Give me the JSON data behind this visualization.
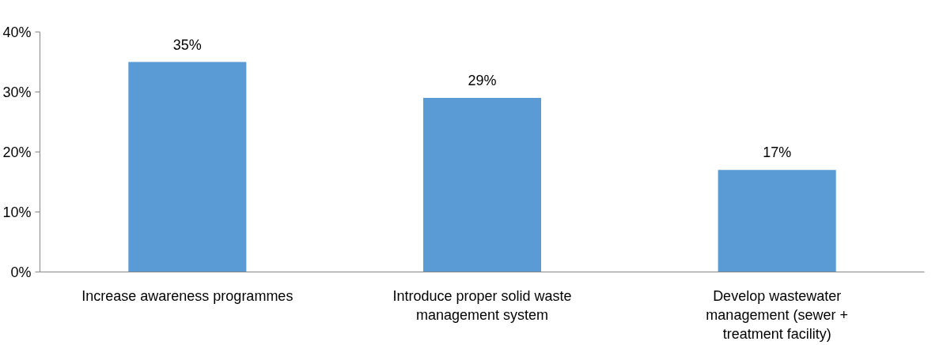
{
  "chart_data": {
    "type": "bar",
    "categories": [
      "Increase awareness programmes",
      "Introduce proper solid waste\nmanagement system",
      "Develop wastewater\nmanagement (sewer +\ntreatment facility)"
    ],
    "values": [
      35,
      29,
      17
    ],
    "value_labels": [
      "35%",
      "29%",
      "17%"
    ],
    "color": "#5b9bd5",
    "ylim": [
      0,
      40
    ],
    "yticks": [
      {
        "value": 0,
        "label": "0%"
      },
      {
        "value": 10,
        "label": "10%"
      },
      {
        "value": 20,
        "label": "20%"
      },
      {
        "value": 30,
        "label": "30%"
      },
      {
        "value": 40,
        "label": "40%"
      }
    ],
    "grid": false
  }
}
